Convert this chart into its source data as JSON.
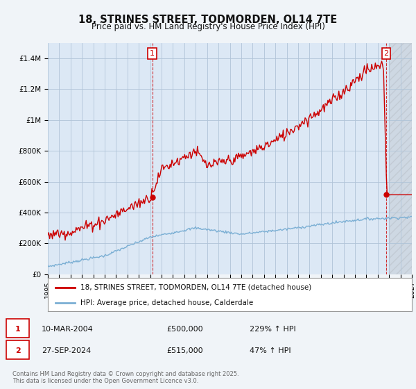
{
  "title": "18, STRINES STREET, TODMORDEN, OL14 7TE",
  "subtitle": "Price paid vs. HM Land Registry's House Price Index (HPI)",
  "legend_line1": "18, STRINES STREET, TODMORDEN, OL14 7TE (detached house)",
  "legend_line2": "HPI: Average price, detached house, Calderdale",
  "annotation1_date": "10-MAR-2004",
  "annotation1_price": 500000,
  "annotation1_price_str": "£500,000",
  "annotation1_hpi": "229% ↑ HPI",
  "annotation2_date": "27-SEP-2024",
  "annotation2_price": 515000,
  "annotation2_price_str": "£515,000",
  "annotation2_hpi": "47% ↑ HPI",
  "footnote": "Contains HM Land Registry data © Crown copyright and database right 2025.\nThis data is licensed under the Open Government Licence v3.0.",
  "hpi_color": "#7bafd4",
  "price_color": "#cc0000",
  "vline_color": "#cc0000",
  "annotation_box_color": "#cc0000",
  "ylim": [
    0,
    1500000
  ],
  "yticks": [
    0,
    200000,
    400000,
    600000,
    800000,
    1000000,
    1200000,
    1400000
  ],
  "ytick_labels": [
    "£0",
    "£200K",
    "£400K",
    "£600K",
    "£800K",
    "£1M",
    "£1.2M",
    "£1.4M"
  ],
  "background_color": "#f0f4f8",
  "plot_bg_color": "#dce8f5",
  "grid_color": "#b0c4d8",
  "sale1_x": 2004.19,
  "sale1_y": 500000,
  "sale2_x": 2024.74,
  "sale2_y": 515000,
  "xmin": 1995,
  "xmax": 2027
}
